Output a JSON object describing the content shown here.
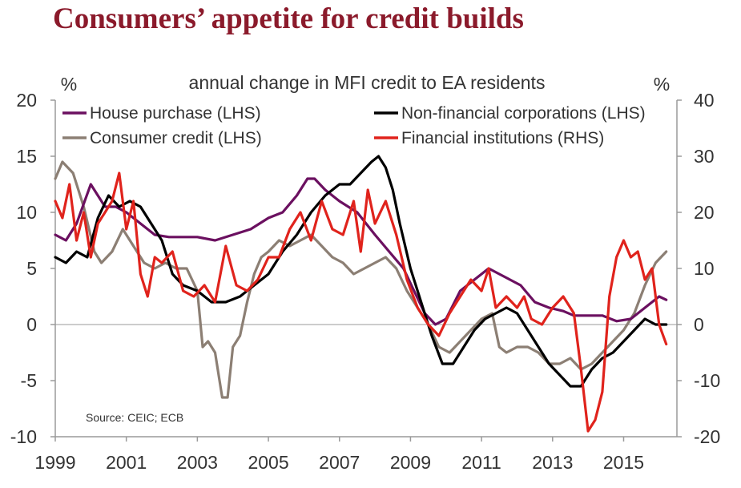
{
  "header": {
    "title": "Consumers’ appetite for credit builds"
  },
  "chart_data": {
    "type": "line",
    "subtitle": "annual change in MFI credit to EA residents",
    "left_unit": "%",
    "right_unit": "%",
    "source": "Source: CEIC; ECB",
    "x_range": [
      1999,
      2016.5
    ],
    "left_axis": {
      "range": [
        -10,
        20
      ],
      "ticks": [
        20,
        15,
        10,
        5,
        0,
        -5,
        -10
      ]
    },
    "right_axis": {
      "range": [
        -20,
        40
      ],
      "ticks": [
        40,
        30,
        20,
        10,
        0,
        -10,
        -20
      ]
    },
    "x_ticks": [
      1999,
      2001,
      2003,
      2005,
      2007,
      2009,
      2011,
      2013,
      2015
    ],
    "series": [
      {
        "name": "House purchase (LHS)",
        "color": "#6b1060",
        "axis": "left",
        "x": [
          1999.0,
          1999.3,
          1999.6,
          2000.0,
          2000.4,
          2000.7,
          2001.0,
          2001.4,
          2001.8,
          2002.2,
          2002.6,
          2003.0,
          2003.5,
          2004.0,
          2004.5,
          2005.0,
          2005.4,
          2005.8,
          2006.1,
          2006.3,
          2006.6,
          2007.0,
          2007.5,
          2008.0,
          2008.4,
          2008.8,
          2009.1,
          2009.4,
          2009.7,
          2010.0,
          2010.4,
          2010.8,
          2011.2,
          2011.5,
          2011.8,
          2012.1,
          2012.5,
          2012.9,
          2013.3,
          2013.6,
          2014.0,
          2014.4,
          2014.8,
          2015.2,
          2015.6,
          2016.0,
          2016.2
        ],
        "values": [
          8.0,
          7.5,
          9.0,
          12.5,
          10.5,
          10.5,
          10.0,
          9.0,
          8.0,
          7.8,
          7.8,
          7.8,
          7.5,
          8.0,
          8.5,
          9.5,
          10.0,
          11.5,
          13.0,
          13.0,
          12.0,
          11.0,
          10.0,
          8.0,
          6.5,
          5.0,
          3.0,
          1.0,
          0.0,
          0.5,
          3.0,
          4.0,
          5.0,
          4.5,
          4.0,
          3.5,
          2.0,
          1.5,
          1.2,
          0.8,
          0.8,
          0.8,
          0.3,
          0.5,
          1.5,
          2.5,
          2.2
        ]
      },
      {
        "name": "Non-financial corporations (LHS)",
        "color": "#000000",
        "axis": "left",
        "x": [
          1999.0,
          1999.3,
          1999.6,
          1999.9,
          2000.2,
          2000.5,
          2000.8,
          2001.1,
          2001.4,
          2001.7,
          2002.0,
          2002.3,
          2002.6,
          2003.0,
          2003.4,
          2003.8,
          2004.2,
          2004.6,
          2005.0,
          2005.4,
          2005.8,
          2006.2,
          2006.6,
          2007.0,
          2007.3,
          2007.6,
          2007.9,
          2008.1,
          2008.3,
          2008.5,
          2008.7,
          2009.0,
          2009.3,
          2009.6,
          2009.9,
          2010.2,
          2010.5,
          2010.8,
          2011.1,
          2011.4,
          2011.7,
          2012.0,
          2012.3,
          2012.6,
          2012.9,
          2013.2,
          2013.5,
          2013.8,
          2014.1,
          2014.4,
          2014.7,
          2015.0,
          2015.3,
          2015.6,
          2015.9,
          2016.2
        ],
        "values": [
          6.0,
          5.5,
          6.5,
          6.0,
          9.5,
          11.5,
          10.5,
          11.0,
          10.5,
          9.0,
          7.5,
          4.5,
          3.5,
          3.0,
          2.0,
          2.0,
          2.5,
          3.5,
          4.5,
          6.5,
          8.0,
          10.0,
          11.5,
          12.5,
          12.5,
          13.5,
          14.5,
          15.0,
          14.0,
          12.0,
          9.0,
          5.0,
          2.0,
          -1.0,
          -3.5,
          -3.5,
          -2.0,
          -0.5,
          0.5,
          1.0,
          1.5,
          1.0,
          -0.5,
          -2.0,
          -3.5,
          -4.5,
          -5.5,
          -5.5,
          -4.0,
          -3.0,
          -2.5,
          -1.5,
          -0.5,
          0.5,
          0.0,
          0.0
        ]
      },
      {
        "name": "Consumer credit (LHS)",
        "color": "#8c7f74",
        "axis": "left",
        "x": [
          1999.0,
          1999.2,
          1999.5,
          1999.8,
          2000.1,
          2000.3,
          2000.6,
          2000.9,
          2001.2,
          2001.5,
          2001.8,
          2002.1,
          2002.4,
          2002.7,
          2003.0,
          2003.15,
          2003.3,
          2003.5,
          2003.7,
          2003.85,
          2004.0,
          2004.2,
          2004.4,
          2004.6,
          2004.8,
          2005.0,
          2005.3,
          2005.6,
          2005.9,
          2006.2,
          2006.5,
          2006.8,
          2007.1,
          2007.4,
          2007.7,
          2008.0,
          2008.3,
          2008.6,
          2008.9,
          2009.2,
          2009.5,
          2009.8,
          2010.1,
          2010.4,
          2010.7,
          2011.0,
          2011.3,
          2011.5,
          2011.7,
          2012.0,
          2012.3,
          2012.6,
          2012.9,
          2013.2,
          2013.5,
          2013.8,
          2014.1,
          2014.4,
          2014.7,
          2015.0,
          2015.3,
          2015.6,
          2015.9,
          2016.2
        ],
        "values": [
          13.0,
          14.5,
          13.5,
          10.5,
          6.5,
          5.5,
          6.5,
          8.5,
          7.0,
          5.5,
          5.0,
          5.5,
          5.0,
          5.0,
          3.0,
          -2.0,
          -1.5,
          -2.5,
          -6.5,
          -6.5,
          -2.0,
          -1.0,
          2.0,
          4.5,
          6.0,
          6.5,
          7.5,
          7.0,
          7.5,
          8.0,
          7.0,
          6.0,
          5.5,
          4.5,
          5.0,
          5.5,
          6.0,
          5.0,
          3.0,
          1.5,
          0.0,
          -2.0,
          -2.5,
          -1.5,
          -0.5,
          0.5,
          1.0,
          -2.0,
          -2.5,
          -2.0,
          -2.0,
          -2.5,
          -3.5,
          -3.5,
          -3.0,
          -4.0,
          -3.5,
          -2.5,
          -1.5,
          -0.5,
          1.0,
          3.5,
          5.5,
          6.5
        ]
      },
      {
        "name": "Financial institutions (RHS)",
        "color": "#e0231c",
        "axis": "right",
        "x": [
          1999.0,
          1999.2,
          1999.4,
          1999.6,
          1999.8,
          2000.0,
          2000.2,
          2000.4,
          2000.6,
          2000.8,
          2001.0,
          2001.2,
          2001.4,
          2001.6,
          2001.8,
          2002.0,
          2002.3,
          2002.6,
          2002.9,
          2003.2,
          2003.5,
          2003.8,
          2004.1,
          2004.4,
          2004.7,
          2005.0,
          2005.3,
          2005.6,
          2005.9,
          2006.2,
          2006.5,
          2006.8,
          2007.1,
          2007.4,
          2007.6,
          2007.8,
          2008.0,
          2008.3,
          2008.6,
          2008.9,
          2009.2,
          2009.5,
          2009.8,
          2010.1,
          2010.4,
          2010.7,
          2011.0,
          2011.2,
          2011.4,
          2011.7,
          2012.0,
          2012.2,
          2012.4,
          2012.7,
          2013.0,
          2013.3,
          2013.6,
          2013.8,
          2014.0,
          2014.2,
          2014.4,
          2014.6,
          2014.8,
          2015.0,
          2015.2,
          2015.4,
          2015.6,
          2015.8,
          2016.0,
          2016.2
        ],
        "values": [
          22.0,
          19.0,
          25.0,
          15.0,
          20.0,
          12.0,
          18.0,
          20.0,
          22.0,
          27.0,
          17.0,
          22.0,
          9.0,
          5.0,
          12.0,
          11.0,
          13.0,
          6.0,
          5.0,
          7.0,
          4.0,
          14.0,
          7.0,
          6.0,
          8.0,
          12.0,
          12.0,
          17.0,
          20.0,
          15.0,
          22.0,
          17.0,
          16.0,
          22.0,
          13.0,
          24.0,
          18.0,
          22.0,
          16.0,
          8.0,
          3.0,
          0.0,
          -2.0,
          2.0,
          5.0,
          8.0,
          6.0,
          10.0,
          3.0,
          5.0,
          3.0,
          5.0,
          1.0,
          0.0,
          3.0,
          5.0,
          2.0,
          -8.0,
          -19.0,
          -17.0,
          -12.0,
          5.0,
          12.0,
          15.0,
          12.0,
          13.0,
          8.0,
          10.0,
          0.0,
          -3.5
        ]
      }
    ]
  }
}
